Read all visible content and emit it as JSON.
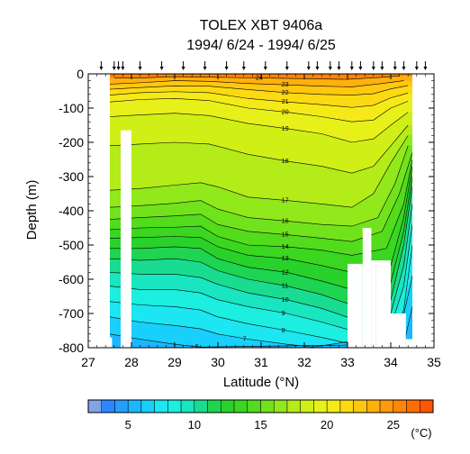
{
  "chart_data": {
    "type": "heatmap",
    "title": "TOLEX XBT 9406a",
    "subtitle": "1994/ 6/24 - 1994/ 6/25",
    "xlabel": "Latitude (°N)",
    "ylabel": "Depth (m)",
    "xlim": [
      27,
      35
    ],
    "ylim": [
      -800,
      0
    ],
    "xticks": [
      "27",
      "28",
      "29",
      "30",
      "31",
      "32",
      "33",
      "34",
      "35"
    ],
    "yticks": [
      "0",
      "-100",
      "-200",
      "-300",
      "-400",
      "-500",
      "-600",
      "-700",
      "-800"
    ],
    "colorbar": {
      "unit": "(°C)",
      "range": [
        2,
        28
      ],
      "tick_labels": [
        "5",
        "10",
        "15",
        "20",
        "25"
      ]
    },
    "station_latitudes": [
      27.3,
      27.6,
      27.7,
      27.8,
      28.2,
      28.7,
      29.2,
      29.7,
      30.2,
      30.6,
      31.1,
      31.6,
      32.1,
      32.3,
      32.6,
      32.8,
      33.1,
      33.3,
      33.6,
      33.8,
      34.1,
      34.3,
      34.6,
      34.8
    ],
    "contours": [
      {
        "level": 24,
        "label": "24",
        "points": [
          [
            27.6,
            -12
          ],
          [
            28.2,
            -12
          ],
          [
            29.0,
            -8
          ],
          [
            30.0,
            -10
          ],
          [
            31.0,
            -12
          ],
          [
            32.0,
            -14
          ],
          [
            33.0,
            -16
          ],
          [
            33.8,
            -10
          ],
          [
            34.2,
            -6
          ]
        ]
      },
      {
        "level": 23,
        "label": "23",
        "points": [
          [
            27.5,
            -30
          ],
          [
            28.2,
            -26
          ],
          [
            29.0,
            -20
          ],
          [
            29.8,
            -22
          ],
          [
            30.7,
            -28
          ],
          [
            31.6,
            -32
          ],
          [
            32.4,
            -36
          ],
          [
            33.1,
            -38
          ],
          [
            33.8,
            -28
          ],
          [
            34.3,
            -20
          ]
        ]
      },
      {
        "level": 22,
        "label": "22",
        "points": [
          [
            27.5,
            -45
          ],
          [
            28.2,
            -40
          ],
          [
            29.0,
            -35
          ],
          [
            29.8,
            -36
          ],
          [
            30.7,
            -46
          ],
          [
            31.6,
            -55
          ],
          [
            32.4,
            -60
          ],
          [
            33.1,
            -62
          ],
          [
            33.6,
            -58
          ],
          [
            34.0,
            -44
          ],
          [
            34.4,
            -34
          ]
        ]
      },
      {
        "level": 21,
        "label": "21",
        "points": [
          [
            27.5,
            -62
          ],
          [
            28.2,
            -55
          ],
          [
            29.0,
            -52
          ],
          [
            29.8,
            -55
          ],
          [
            30.7,
            -72
          ],
          [
            31.6,
            -82
          ],
          [
            32.4,
            -90
          ],
          [
            33.1,
            -98
          ],
          [
            33.6,
            -92
          ],
          [
            34.0,
            -70
          ],
          [
            34.4,
            -56
          ]
        ]
      },
      {
        "level": 20,
        "label": "20",
        "points": [
          [
            27.5,
            -82
          ],
          [
            28.2,
            -75
          ],
          [
            29.0,
            -72
          ],
          [
            29.8,
            -78
          ],
          [
            30.7,
            -100
          ],
          [
            31.6,
            -112
          ],
          [
            32.4,
            -125
          ],
          [
            33.1,
            -140
          ],
          [
            33.6,
            -135
          ],
          [
            34.0,
            -100
          ],
          [
            34.4,
            -80
          ]
        ]
      },
      {
        "level": 19,
        "label": "19",
        "points": [
          [
            27.5,
            -125
          ],
          [
            28.2,
            -120
          ],
          [
            29.0,
            -115
          ],
          [
            29.8,
            -122
          ],
          [
            30.7,
            -145
          ],
          [
            31.6,
            -160
          ],
          [
            32.4,
            -175
          ],
          [
            33.1,
            -200
          ],
          [
            33.6,
            -190
          ],
          [
            34.0,
            -150
          ],
          [
            34.4,
            -112
          ]
        ]
      },
      {
        "level": 18,
        "label": "18",
        "points": [
          [
            27.5,
            -210
          ],
          [
            28.2,
            -205
          ],
          [
            29.0,
            -200
          ],
          [
            29.8,
            -205
          ],
          [
            30.7,
            -235
          ],
          [
            31.6,
            -255
          ],
          [
            32.4,
            -270
          ],
          [
            33.1,
            -290
          ],
          [
            33.6,
            -270
          ],
          [
            34.0,
            -210
          ],
          [
            34.4,
            -150
          ]
        ]
      },
      {
        "level": 17,
        "label": "17",
        "points": [
          [
            27.5,
            -340
          ],
          [
            28.2,
            -335
          ],
          [
            29.0,
            -325
          ],
          [
            29.6,
            -318
          ],
          [
            30.0,
            -330
          ],
          [
            30.7,
            -360
          ],
          [
            31.6,
            -370
          ],
          [
            32.4,
            -380
          ],
          [
            33.1,
            -390
          ],
          [
            33.6,
            -350
          ],
          [
            34.0,
            -260
          ],
          [
            34.4,
            -180
          ]
        ]
      },
      {
        "level": 16,
        "label": "16",
        "points": [
          [
            27.5,
            -390
          ],
          [
            28.2,
            -385
          ],
          [
            29.0,
            -378
          ],
          [
            29.6,
            -370
          ],
          [
            30.0,
            -395
          ],
          [
            30.7,
            -420
          ],
          [
            31.6,
            -430
          ],
          [
            32.4,
            -440
          ],
          [
            33.1,
            -445
          ],
          [
            33.7,
            -420
          ],
          [
            34.1,
            -320
          ],
          [
            34.4,
            -210
          ]
        ]
      },
      {
        "level": 15,
        "label": "15",
        "points": [
          [
            27.5,
            -425
          ],
          [
            28.2,
            -420
          ],
          [
            29.0,
            -415
          ],
          [
            29.6,
            -410
          ],
          [
            30.0,
            -440
          ],
          [
            30.7,
            -460
          ],
          [
            31.6,
            -470
          ],
          [
            32.4,
            -480
          ],
          [
            33.1,
            -490
          ],
          [
            33.8,
            -460
          ],
          [
            34.2,
            -350
          ],
          [
            34.5,
            -230
          ]
        ]
      },
      {
        "level": 14,
        "label": "14",
        "points": [
          [
            27.5,
            -455
          ],
          [
            28.2,
            -450
          ],
          [
            29.0,
            -448
          ],
          [
            29.6,
            -445
          ],
          [
            30.0,
            -475
          ],
          [
            30.7,
            -500
          ],
          [
            31.6,
            -505
          ],
          [
            32.4,
            -515
          ],
          [
            33.1,
            -530
          ],
          [
            33.9,
            -510
          ],
          [
            34.3,
            -380
          ],
          [
            34.5,
            -250
          ]
        ]
      },
      {
        "level": 13,
        "label": "13",
        "points": [
          [
            27.5,
            -480
          ],
          [
            28.2,
            -478
          ],
          [
            29.0,
            -475
          ],
          [
            29.6,
            -478
          ],
          [
            30.0,
            -505
          ],
          [
            30.7,
            -530
          ],
          [
            31.6,
            -540
          ],
          [
            32.4,
            -560
          ],
          [
            33.1,
            -580
          ],
          [
            34.0,
            -560
          ],
          [
            34.3,
            -420
          ],
          [
            34.5,
            -270
          ]
        ]
      },
      {
        "level": 12,
        "label": "12",
        "points": [
          [
            27.5,
            -510
          ],
          [
            28.2,
            -510
          ],
          [
            29.0,
            -505
          ],
          [
            29.6,
            -510
          ],
          [
            30.0,
            -540
          ],
          [
            30.7,
            -565
          ],
          [
            31.6,
            -580
          ],
          [
            32.4,
            -605
          ],
          [
            33.1,
            -630
          ],
          [
            34.0,
            -610
          ],
          [
            34.3,
            -460
          ],
          [
            34.5,
            -300
          ]
        ]
      },
      {
        "level": 11,
        "label": "11",
        "points": [
          [
            27.5,
            -540
          ],
          [
            28.2,
            -545
          ],
          [
            29.0,
            -540
          ],
          [
            29.6,
            -550
          ],
          [
            30.0,
            -575
          ],
          [
            30.7,
            -600
          ],
          [
            31.6,
            -620
          ],
          [
            32.4,
            -645
          ],
          [
            33.1,
            -675
          ],
          [
            34.0,
            -660
          ],
          [
            34.3,
            -500
          ],
          [
            34.5,
            -330
          ]
        ]
      },
      {
        "level": 10,
        "label": "10",
        "points": [
          [
            27.5,
            -580
          ],
          [
            28.2,
            -585
          ],
          [
            29.0,
            -585
          ],
          [
            29.6,
            -595
          ],
          [
            30.0,
            -615
          ],
          [
            30.7,
            -640
          ],
          [
            31.6,
            -660
          ],
          [
            32.4,
            -685
          ],
          [
            33.1,
            -715
          ],
          [
            34.0,
            -700
          ],
          [
            34.3,
            -560
          ],
          [
            34.5,
            -380
          ]
        ]
      },
      {
        "level": 9,
        "label": "9",
        "points": [
          [
            27.5,
            -620
          ],
          [
            28.2,
            -630
          ],
          [
            29.0,
            -630
          ],
          [
            29.6,
            -640
          ],
          [
            30.0,
            -660
          ],
          [
            30.7,
            -680
          ],
          [
            31.6,
            -700
          ],
          [
            32.4,
            -725
          ],
          [
            33.1,
            -750
          ],
          [
            34.0,
            -740
          ],
          [
            34.3,
            -620
          ],
          [
            34.5,
            -440
          ]
        ]
      },
      {
        "level": 8,
        "label": "8",
        "points": [
          [
            27.5,
            -665
          ],
          [
            28.2,
            -675
          ],
          [
            29.0,
            -680
          ],
          [
            29.6,
            -690
          ],
          [
            30.0,
            -710
          ],
          [
            30.7,
            -730
          ],
          [
            31.6,
            -750
          ],
          [
            32.4,
            -770
          ],
          [
            33.1,
            -790
          ],
          [
            34.0,
            -780
          ],
          [
            34.3,
            -690
          ],
          [
            34.5,
            -500
          ]
        ]
      },
      {
        "level": 7,
        "label": "7",
        "points": [
          [
            27.5,
            -710
          ],
          [
            28.2,
            -725
          ],
          [
            29.0,
            -735
          ],
          [
            29.6,
            -745
          ],
          [
            30.0,
            -760
          ],
          [
            30.7,
            -775
          ],
          [
            31.6,
            -790
          ],
          [
            32.2,
            -798
          ],
          [
            34.2,
            -760
          ],
          [
            34.5,
            -590
          ]
        ]
      },
      {
        "level": 6,
        "label": "6",
        "points": [
          [
            27.5,
            -760
          ],
          [
            28.2,
            -775
          ],
          [
            29.0,
            -790
          ],
          [
            29.6,
            -798
          ],
          [
            34.3,
            -790
          ],
          [
            34.5,
            -680
          ]
        ]
      }
    ]
  }
}
